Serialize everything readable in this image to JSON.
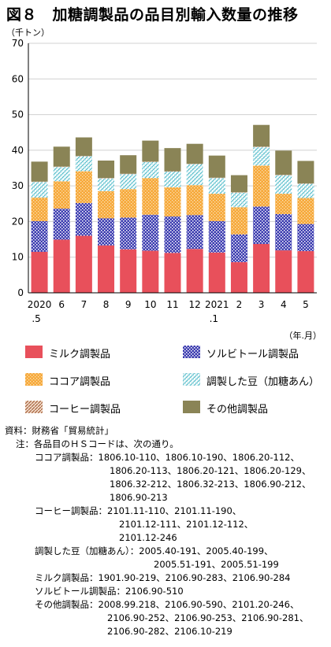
{
  "title": "図８　加糖調製品の品目別輸入数量の推移",
  "chart_data": {
    "type": "bar",
    "stacked": true,
    "y_unit": "（千トン）",
    "x_unit": "（年.月）",
    "ylim": [
      0,
      70
    ],
    "yticks": [
      "0",
      "10",
      "20",
      "30",
      "40",
      "50",
      "60",
      "70"
    ],
    "categories": [
      {
        "top": "2020",
        "bottom": ".5"
      },
      {
        "top": "6",
        "bottom": ""
      },
      {
        "top": "7",
        "bottom": ""
      },
      {
        "top": "8",
        "bottom": ""
      },
      {
        "top": "9",
        "bottom": ""
      },
      {
        "top": "10",
        "bottom": ""
      },
      {
        "top": "11",
        "bottom": ""
      },
      {
        "top": "12",
        "bottom": ""
      },
      {
        "top": "2021",
        "bottom": ".1"
      },
      {
        "top": "2",
        "bottom": ""
      },
      {
        "top": "3",
        "bottom": ""
      },
      {
        "top": "4",
        "bottom": ""
      },
      {
        "top": "5",
        "bottom": ""
      }
    ],
    "series": [
      {
        "name": "ミルク調製品",
        "color": "#e8505b",
        "values": [
          11.5,
          14.9,
          16.0,
          13.3,
          12.2,
          11.8,
          11.2,
          12.3,
          11.3,
          8.6,
          13.7,
          11.9,
          11.7
        ]
      },
      {
        "name": "ソルビトール調製品",
        "color": "#4a4ab8",
        "values": [
          8.6,
          8.7,
          9.2,
          7.6,
          8.9,
          10.1,
          10.2,
          9.5,
          8.8,
          7.8,
          10.5,
          10.2,
          7.6
        ]
      },
      {
        "name": "ココア調製品",
        "color": "#f5a640",
        "values": [
          6.6,
          7.7,
          8.9,
          7.6,
          8.0,
          10.3,
          8.2,
          8.4,
          7.7,
          7.6,
          11.5,
          5.7,
          7.3
        ]
      },
      {
        "name": "調製した豆（加糖あん）",
        "color": "#5bc4d0",
        "values": [
          4.4,
          4.0,
          4.2,
          3.6,
          4.2,
          4.5,
          4.4,
          5.9,
          4.4,
          4.1,
          5.2,
          5.2,
          4.0
        ]
      },
      {
        "name": "コーヒー調製品",
        "color": "#b07050",
        "values": [
          0.1,
          0.1,
          0.1,
          0.1,
          0.1,
          0.1,
          0.1,
          0.1,
          0.1,
          0.1,
          0.1,
          0.1,
          0.1
        ]
      },
      {
        "name": "その他調製品",
        "color": "#8a8456",
        "values": [
          5.6,
          5.6,
          5.2,
          4.9,
          5.2,
          5.9,
          6.5,
          5.6,
          6.2,
          4.8,
          6.1,
          6.8,
          6.3
        ]
      }
    ]
  },
  "notes": {
    "source_label": "資料：",
    "source": "財務省「貿易統計」",
    "note_label": "注：",
    "note": "各品目のＨＳコードは、次の通り。",
    "items": [
      {
        "label": "ココア調製品：",
        "lines": [
          "1806.10-110、1806.10-190、1806.20-112、",
          "1806.20-113、1806.20-121、1806.20-129、",
          "1806.32-212、1806.32-213、1806.90-212、",
          "1806.90-213"
        ]
      },
      {
        "label": "コーヒー調製品：",
        "lines": [
          "2101.11-110、2101.11-190、",
          "2101.12-111、2101.12-112、",
          "2101.12-246"
        ]
      },
      {
        "label": "調製した豆（加糖あん）：",
        "lines": [
          "2005.40-191、2005.40-199、",
          "2005.51-191、2005.51-199"
        ]
      },
      {
        "label": "ミルク調製品：",
        "lines": [
          "1901.90-219、2106.90-283、2106.90-284"
        ]
      },
      {
        "label": "ソルビトール調製品：",
        "lines": [
          "2106.90-510"
        ]
      },
      {
        "label": "その他調製品：",
        "lines": [
          "2008.99.218、2106.90-590、2101.20-246、",
          "2106.90-252、2106.90-253、2106.90-281、",
          "2106.90-282、2106.10-219"
        ]
      }
    ]
  }
}
